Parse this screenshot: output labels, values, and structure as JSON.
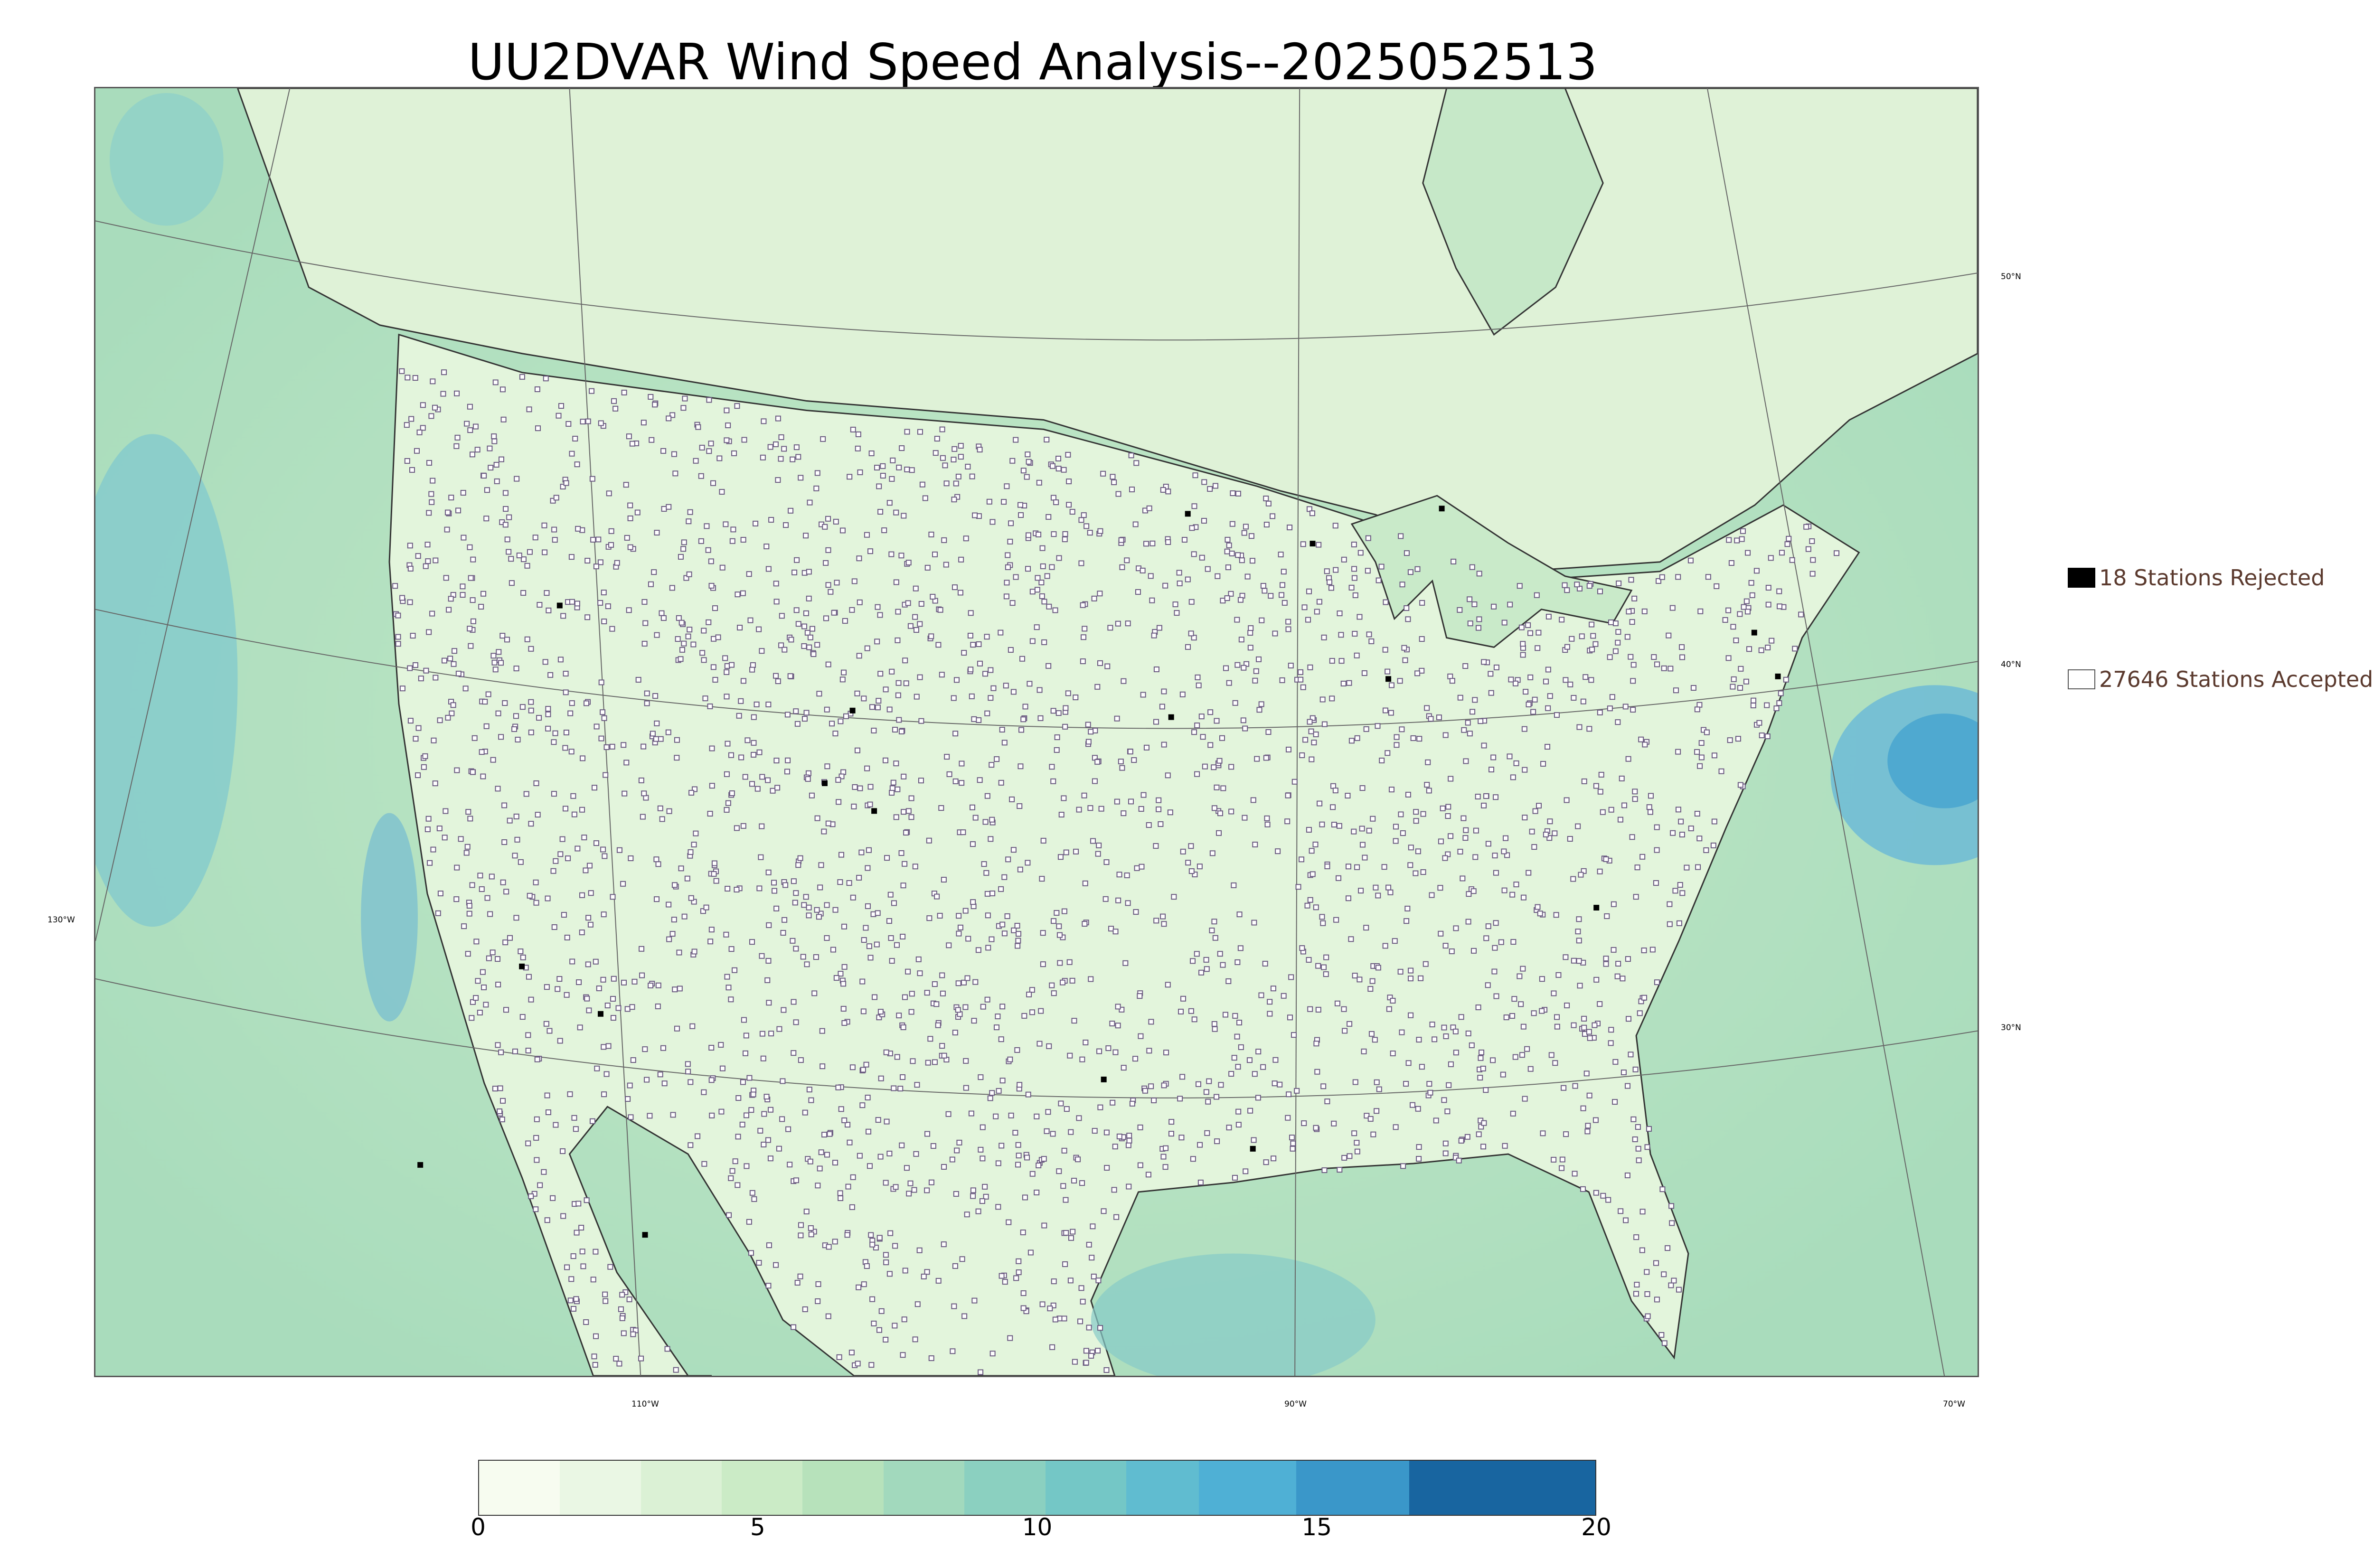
{
  "title": "UU2DVAR Wind Speed Analysis--2025052513",
  "map": {
    "lon_labels": [
      "110°W",
      "90°W",
      "70°W"
    ],
    "lat_labels": [
      "50°N",
      "40°N",
      "30°N"
    ],
    "west_label": "130°W",
    "colors": {
      "land": "#e2f4dc",
      "ocean": "#a8dcbb",
      "strong_wind": "#5fb3d8",
      "station": "#6a5a80"
    }
  },
  "legend": {
    "rejected": {
      "label": "18 Stations Rejected",
      "color": "#000000"
    },
    "accepted": {
      "label": "27646 Stations Accepted",
      "color": "#ffffff"
    }
  },
  "colorbar": {
    "min": 0,
    "max": 20,
    "ticks": [
      "0",
      "5",
      "10",
      "15",
      "20"
    ],
    "colors": [
      "#f7fcf0",
      "#eaf7e4",
      "#dbf1d5",
      "#cbebc6",
      "#b7e2bb",
      "#a2d9bd",
      "#8bd0c0",
      "#74c7c6",
      "#60bcd0",
      "#4fb0d5",
      "#3a97c9",
      "#1865a0"
    ]
  }
}
